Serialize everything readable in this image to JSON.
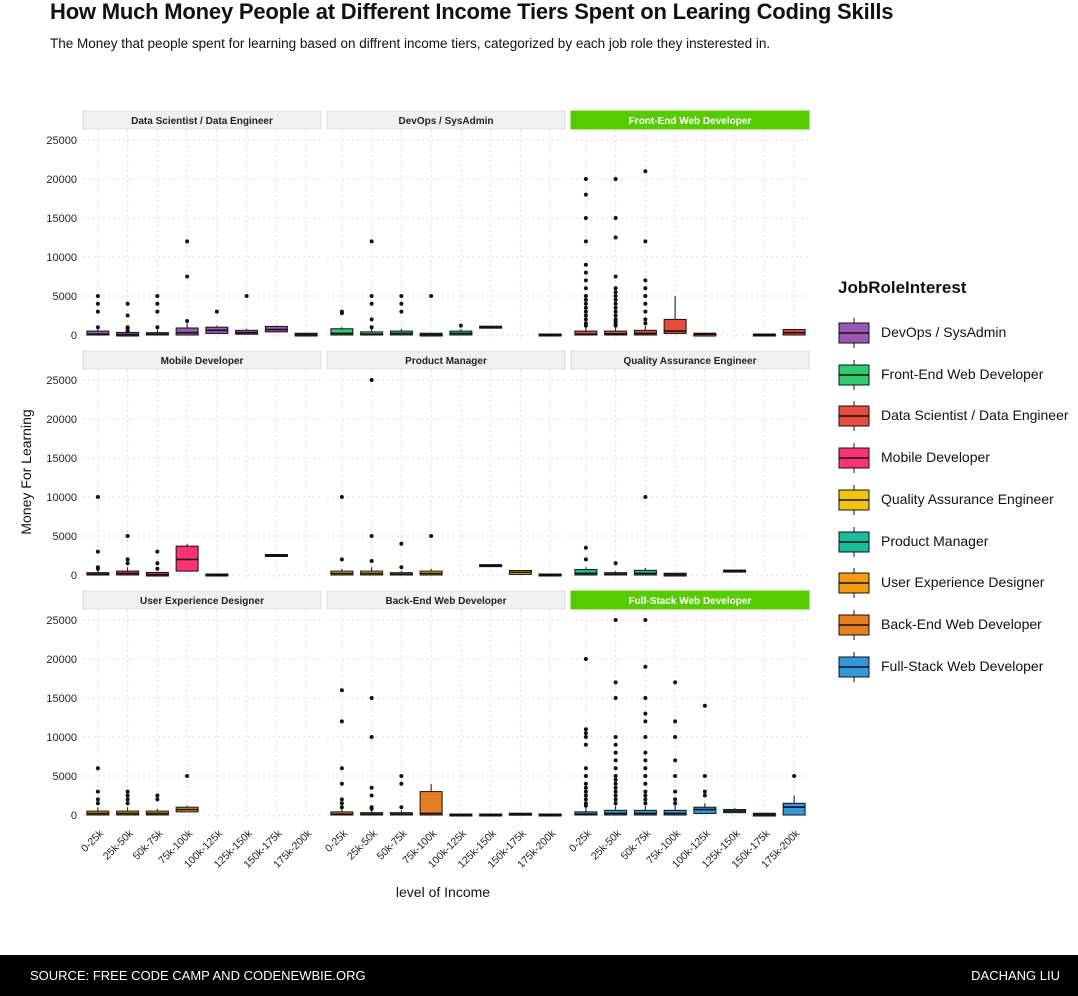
{
  "title": "How Much Money People at Different Income Tiers Spent on Learing Coding Skills",
  "subtitle": "The Money that people spent for learning based on diffrent income tiers, categorized by each job role they insterested in.",
  "footer": {
    "source": "SOURCE: FREE CODE CAMP AND CODENEWBIE.ORG",
    "author": "DACHANG LIU"
  },
  "chart_data": {
    "type": "boxplot",
    "facet": "JobRoleInterest",
    "xlabel": "level of Income",
    "ylabel": "Money For Learning",
    "ylim": [
      0,
      25000
    ],
    "yticks": [
      0,
      5000,
      10000,
      15000,
      20000,
      25000
    ],
    "categories": [
      "0-25k",
      "25k-50k",
      "50k-75k",
      "75k-100k",
      "100k-125k",
      "125k-150k",
      "150k-175k",
      "175k-200k"
    ],
    "grid": true,
    "legend": {
      "title": "JobRoleInterest",
      "position": "right",
      "items": [
        {
          "label": "DevOps / SysAdmin",
          "color": "#9B59B6"
        },
        {
          "label": "Front-End Web Developer",
          "color": "#2ECC71"
        },
        {
          "label": "Data Scientist / Data Engineer",
          "color": "#E74C3C"
        },
        {
          "label": "Mobile Developer",
          "color": "#FF3374"
        },
        {
          "label": "Quality Assurance Engineer",
          "color": "#F1C40F"
        },
        {
          "label": "Product Manager",
          "color": "#1ABC9C"
        },
        {
          "label": "User Experience Designer",
          "color": "#F39C12"
        },
        {
          "label": "Back-End Web Developer",
          "color": "#E67E22"
        },
        {
          "label": "Full-Stack Web Developer",
          "color": "#3498DB"
        }
      ]
    },
    "highlight_color": "#55CC00",
    "panels": [
      {
        "title": "Data Scientist / Data Engineer",
        "highlight": false,
        "color": "#9B59B6",
        "boxes": [
          {
            "x": "0-25k",
            "q1": 0,
            "median": 100,
            "q3": 500,
            "max": 800,
            "outliers": [
              1000,
              3000,
              4000,
              5000
            ]
          },
          {
            "x": "25k-50k",
            "q1": 0,
            "median": 50,
            "q3": 200,
            "max": 400,
            "outliers": [
              500,
              800,
              1000,
              2500,
              4000
            ]
          },
          {
            "x": "50k-75k",
            "q1": 0,
            "median": 100,
            "q3": 300,
            "max": 700,
            "outliers": [
              1000,
              3000,
              4000,
              5000
            ]
          },
          {
            "x": "75k-100k",
            "q1": 0,
            "median": 300,
            "q3": 900,
            "max": 1500,
            "outliers": [
              1800,
              7500,
              12000
            ]
          },
          {
            "x": "100k-125k",
            "q1": 200,
            "median": 600,
            "q3": 1000,
            "max": 1200,
            "outliers": [
              3000
            ]
          },
          {
            "x": "125k-150k",
            "q1": 100,
            "median": 300,
            "q3": 600,
            "max": 800,
            "outliers": [
              5000
            ]
          },
          {
            "x": "150k-175k",
            "q1": 400,
            "median": 700,
            "q3": 1100,
            "max": 1200,
            "outliers": []
          },
          {
            "x": "175k-200k",
            "q1": 0,
            "median": 50,
            "q3": 100,
            "max": 100,
            "outliers": []
          }
        ]
      },
      {
        "title": "DevOps / SysAdmin",
        "highlight": false,
        "color": "#2ECC71",
        "boxes": [
          {
            "x": "0-25k",
            "q1": 0,
            "median": 200,
            "q3": 800,
            "max": 1000,
            "outliers": [
              2800,
              3000
            ]
          },
          {
            "x": "25k-50k",
            "q1": 0,
            "median": 100,
            "q3": 400,
            "max": 800,
            "outliers": [
              1000,
              2000,
              4000,
              5000,
              12000
            ]
          },
          {
            "x": "50k-75k",
            "q1": 0,
            "median": 200,
            "q3": 500,
            "max": 800,
            "outliers": [
              3000,
              4000,
              5000
            ]
          },
          {
            "x": "75k-100k",
            "q1": 0,
            "median": 50,
            "q3": 100,
            "max": 100,
            "outliers": [
              5000
            ]
          },
          {
            "x": "100k-125k",
            "q1": 0,
            "median": 200,
            "q3": 500,
            "max": 800,
            "outliers": [
              1200
            ]
          },
          {
            "x": "125k-150k",
            "q1": 1000,
            "median": 1000,
            "q3": 1000,
            "max": 1000,
            "outliers": []
          },
          {
            "x": "175k-200k",
            "q1": 0,
            "median": 0,
            "q3": 0,
            "max": 0,
            "outliers": []
          }
        ]
      },
      {
        "title": "Front-End Web Developer",
        "highlight": true,
        "color": "#E74C3C",
        "boxes": [
          {
            "x": "0-25k",
            "q1": 0,
            "median": 100,
            "q3": 500,
            "max": 1000,
            "outliers": [
              1200,
              1500,
              2000,
              2500,
              3000,
              3500,
              4000,
              4500,
              5000,
              6000,
              7000,
              8000,
              9000,
              12000,
              15000,
              18000,
              20000
            ]
          },
          {
            "x": "25k-50k",
            "q1": 0,
            "median": 150,
            "q3": 500,
            "max": 1000,
            "outliers": [
              1200,
              1500,
              1800,
              2000,
              2500,
              3000,
              3500,
              4000,
              4500,
              5000,
              5500,
              6000,
              7500,
              12500,
              15000,
              20000
            ]
          },
          {
            "x": "50k-75k",
            "q1": 0,
            "median": 200,
            "q3": 600,
            "max": 1200,
            "outliers": [
              1500,
              2000,
              3000,
              4000,
              5000,
              6000,
              7000,
              12000,
              21000
            ]
          },
          {
            "x": "75k-100k",
            "q1": 200,
            "median": 500,
            "q3": 2000,
            "max": 5000,
            "outliers": []
          },
          {
            "x": "100k-125k",
            "q1": 0,
            "median": 100,
            "q3": 100,
            "max": 100,
            "outliers": []
          },
          {
            "x": "150k-175k",
            "q1": 0,
            "median": 0,
            "q3": 0,
            "max": 0,
            "outliers": []
          },
          {
            "x": "175k-200k",
            "q1": 0,
            "median": 300,
            "q3": 700,
            "max": 800,
            "outliers": []
          }
        ]
      },
      {
        "title": "Mobile Developer",
        "highlight": false,
        "color": "#FF3374",
        "boxes": [
          {
            "x": "0-25k",
            "q1": 0,
            "median": 100,
            "q3": 300,
            "max": 600,
            "outliers": [
              800,
              1000,
              3000,
              10000
            ]
          },
          {
            "x": "25k-50k",
            "q1": 0,
            "median": 200,
            "q3": 500,
            "max": 1000,
            "outliers": [
              1500,
              2000,
              5000
            ]
          },
          {
            "x": "50k-75k",
            "q1": 0,
            "median": 50,
            "q3": 200,
            "max": 400,
            "outliers": [
              800,
              1500,
              3000
            ]
          },
          {
            "x": "75k-100k",
            "q1": 500,
            "median": 2000,
            "q3": 3700,
            "max": 4000,
            "outliers": []
          },
          {
            "x": "100k-125k",
            "q1": 0,
            "median": 0,
            "q3": 0,
            "max": 0,
            "outliers": []
          },
          {
            "x": "150k-175k",
            "q1": 2500,
            "median": 2500,
            "q3": 2500,
            "max": 2500,
            "outliers": []
          }
        ]
      },
      {
        "title": "Product Manager",
        "highlight": false,
        "color": "#F1C40F",
        "boxes": [
          {
            "x": "0-25k",
            "q1": 0,
            "median": 200,
            "q3": 500,
            "max": 800,
            "outliers": [
              2000,
              10000
            ]
          },
          {
            "x": "25k-50k",
            "q1": 0,
            "median": 200,
            "q3": 500,
            "max": 1000,
            "outliers": [
              1800,
              5000,
              25000
            ]
          },
          {
            "x": "50k-75k",
            "q1": 0,
            "median": 100,
            "q3": 300,
            "max": 500,
            "outliers": [
              1000,
              4000
            ]
          },
          {
            "x": "75k-100k",
            "q1": 0,
            "median": 200,
            "q3": 500,
            "max": 800,
            "outliers": [
              5000
            ]
          },
          {
            "x": "125k-150k",
            "q1": 1200,
            "median": 1200,
            "q3": 1200,
            "max": 1200,
            "outliers": []
          },
          {
            "x": "150k-175k",
            "q1": 200,
            "median": 350,
            "q3": 450,
            "max": 500,
            "outliers": []
          },
          {
            "x": "175k-200k",
            "q1": 0,
            "median": 0,
            "q3": 0,
            "max": 0,
            "outliers": []
          }
        ]
      },
      {
        "title": "Quality Assurance Engineer",
        "highlight": false,
        "color": "#1ABC9C",
        "boxes": [
          {
            "x": "0-25k",
            "q1": 0,
            "median": 200,
            "q3": 700,
            "max": 1000,
            "outliers": [
              2000,
              3500
            ]
          },
          {
            "x": "25k-50k",
            "q1": 0,
            "median": 100,
            "q3": 300,
            "max": 500,
            "outliers": [
              1500
            ]
          },
          {
            "x": "50k-75k",
            "q1": 0,
            "median": 200,
            "q3": 600,
            "max": 900,
            "outliers": [
              10000
            ]
          },
          {
            "x": "75k-100k",
            "q1": 0,
            "median": 50,
            "q3": 100,
            "max": 100,
            "outliers": []
          },
          {
            "x": "125k-150k",
            "q1": 500,
            "median": 500,
            "q3": 500,
            "max": 500,
            "outliers": []
          }
        ]
      },
      {
        "title": "User Experience Designer",
        "highlight": false,
        "color": "#F39C12",
        "boxes": [
          {
            "x": "0-25k",
            "q1": 0,
            "median": 200,
            "q3": 500,
            "max": 1000,
            "outliers": [
              1500,
              2000,
              3000,
              6000
            ]
          },
          {
            "x": "25k-50k",
            "q1": 0,
            "median": 200,
            "q3": 500,
            "max": 1000,
            "outliers": [
              1500,
              2000,
              2500,
              3000
            ]
          },
          {
            "x": "50k-75k",
            "q1": 0,
            "median": 200,
            "q3": 500,
            "max": 800,
            "outliers": [
              2000,
              2500
            ]
          },
          {
            "x": "75k-100k",
            "q1": 400,
            "median": 700,
            "q3": 1000,
            "max": 1200,
            "outliers": [
              5000
            ]
          }
        ]
      },
      {
        "title": "Back-End Web Developer",
        "highlight": false,
        "color": "#E67E22",
        "boxes": [
          {
            "x": "0-25k",
            "q1": 0,
            "median": 100,
            "q3": 400,
            "max": 800,
            "outliers": [
              1000,
              1500,
              2000,
              4000,
              6000,
              12000,
              16000
            ]
          },
          {
            "x": "25k-50k",
            "q1": 0,
            "median": 100,
            "q3": 300,
            "max": 700,
            "outliers": [
              800,
              1000,
              2500,
              3500,
              10000,
              15000
            ]
          },
          {
            "x": "50k-75k",
            "q1": 0,
            "median": 100,
            "q3": 300,
            "max": 600,
            "outliers": [
              1000,
              4000,
              5000
            ]
          },
          {
            "x": "75k-100k",
            "q1": 0,
            "median": 200,
            "q3": 3000,
            "max": 4000,
            "outliers": []
          },
          {
            "x": "100k-125k",
            "q1": 0,
            "median": 0,
            "q3": 0,
            "max": 0,
            "outliers": []
          },
          {
            "x": "125k-150k",
            "q1": 0,
            "median": 0,
            "q3": 0,
            "max": 0,
            "outliers": []
          },
          {
            "x": "150k-175k",
            "q1": 100,
            "median": 100,
            "q3": 100,
            "max": 100,
            "outliers": []
          },
          {
            "x": "175k-200k",
            "q1": 0,
            "median": 0,
            "q3": 0,
            "max": 0,
            "outliers": []
          }
        ]
      },
      {
        "title": "Full-Stack Web Developer",
        "highlight": true,
        "color": "#3498DB",
        "boxes": [
          {
            "x": "0-25k",
            "q1": 0,
            "median": 100,
            "q3": 400,
            "max": 1000,
            "outliers": [
              1200,
              1500,
              2000,
              2500,
              3000,
              3500,
              4000,
              5000,
              6000,
              9000,
              10000,
              10500,
              11000,
              20000
            ]
          },
          {
            "x": "25k-50k",
            "q1": 0,
            "median": 200,
            "q3": 600,
            "max": 1200,
            "outliers": [
              1500,
              2000,
              2500,
              3000,
              3500,
              4000,
              4500,
              5000,
              6000,
              7000,
              8000,
              9000,
              10000,
              15000,
              17000,
              25000
            ]
          },
          {
            "x": "50k-75k",
            "q1": 0,
            "median": 200,
            "q3": 600,
            "max": 1200,
            "outliers": [
              1500,
              2000,
              2500,
              3000,
              4000,
              5000,
              6000,
              7000,
              8000,
              10000,
              12000,
              13000,
              15000,
              19000,
              25000
            ]
          },
          {
            "x": "75k-100k",
            "q1": 0,
            "median": 200,
            "q3": 600,
            "max": 1300,
            "outliers": [
              1500,
              2000,
              3000,
              5000,
              7000,
              10000,
              12000,
              17000
            ]
          },
          {
            "x": "100k-125k",
            "q1": 200,
            "median": 700,
            "q3": 1000,
            "max": 1500,
            "outliers": [
              2500,
              3000,
              5000,
              14000
            ]
          },
          {
            "x": "125k-150k",
            "q1": 300,
            "median": 500,
            "q3": 700,
            "max": 900,
            "outliers": []
          },
          {
            "x": "150k-175k",
            "q1": 0,
            "median": 50,
            "q3": 100,
            "max": 100,
            "outliers": []
          },
          {
            "x": "175k-200k",
            "q1": 0,
            "median": 1000,
            "q3": 1500,
            "max": 2500,
            "outliers": [
              5000
            ]
          }
        ]
      }
    ]
  }
}
